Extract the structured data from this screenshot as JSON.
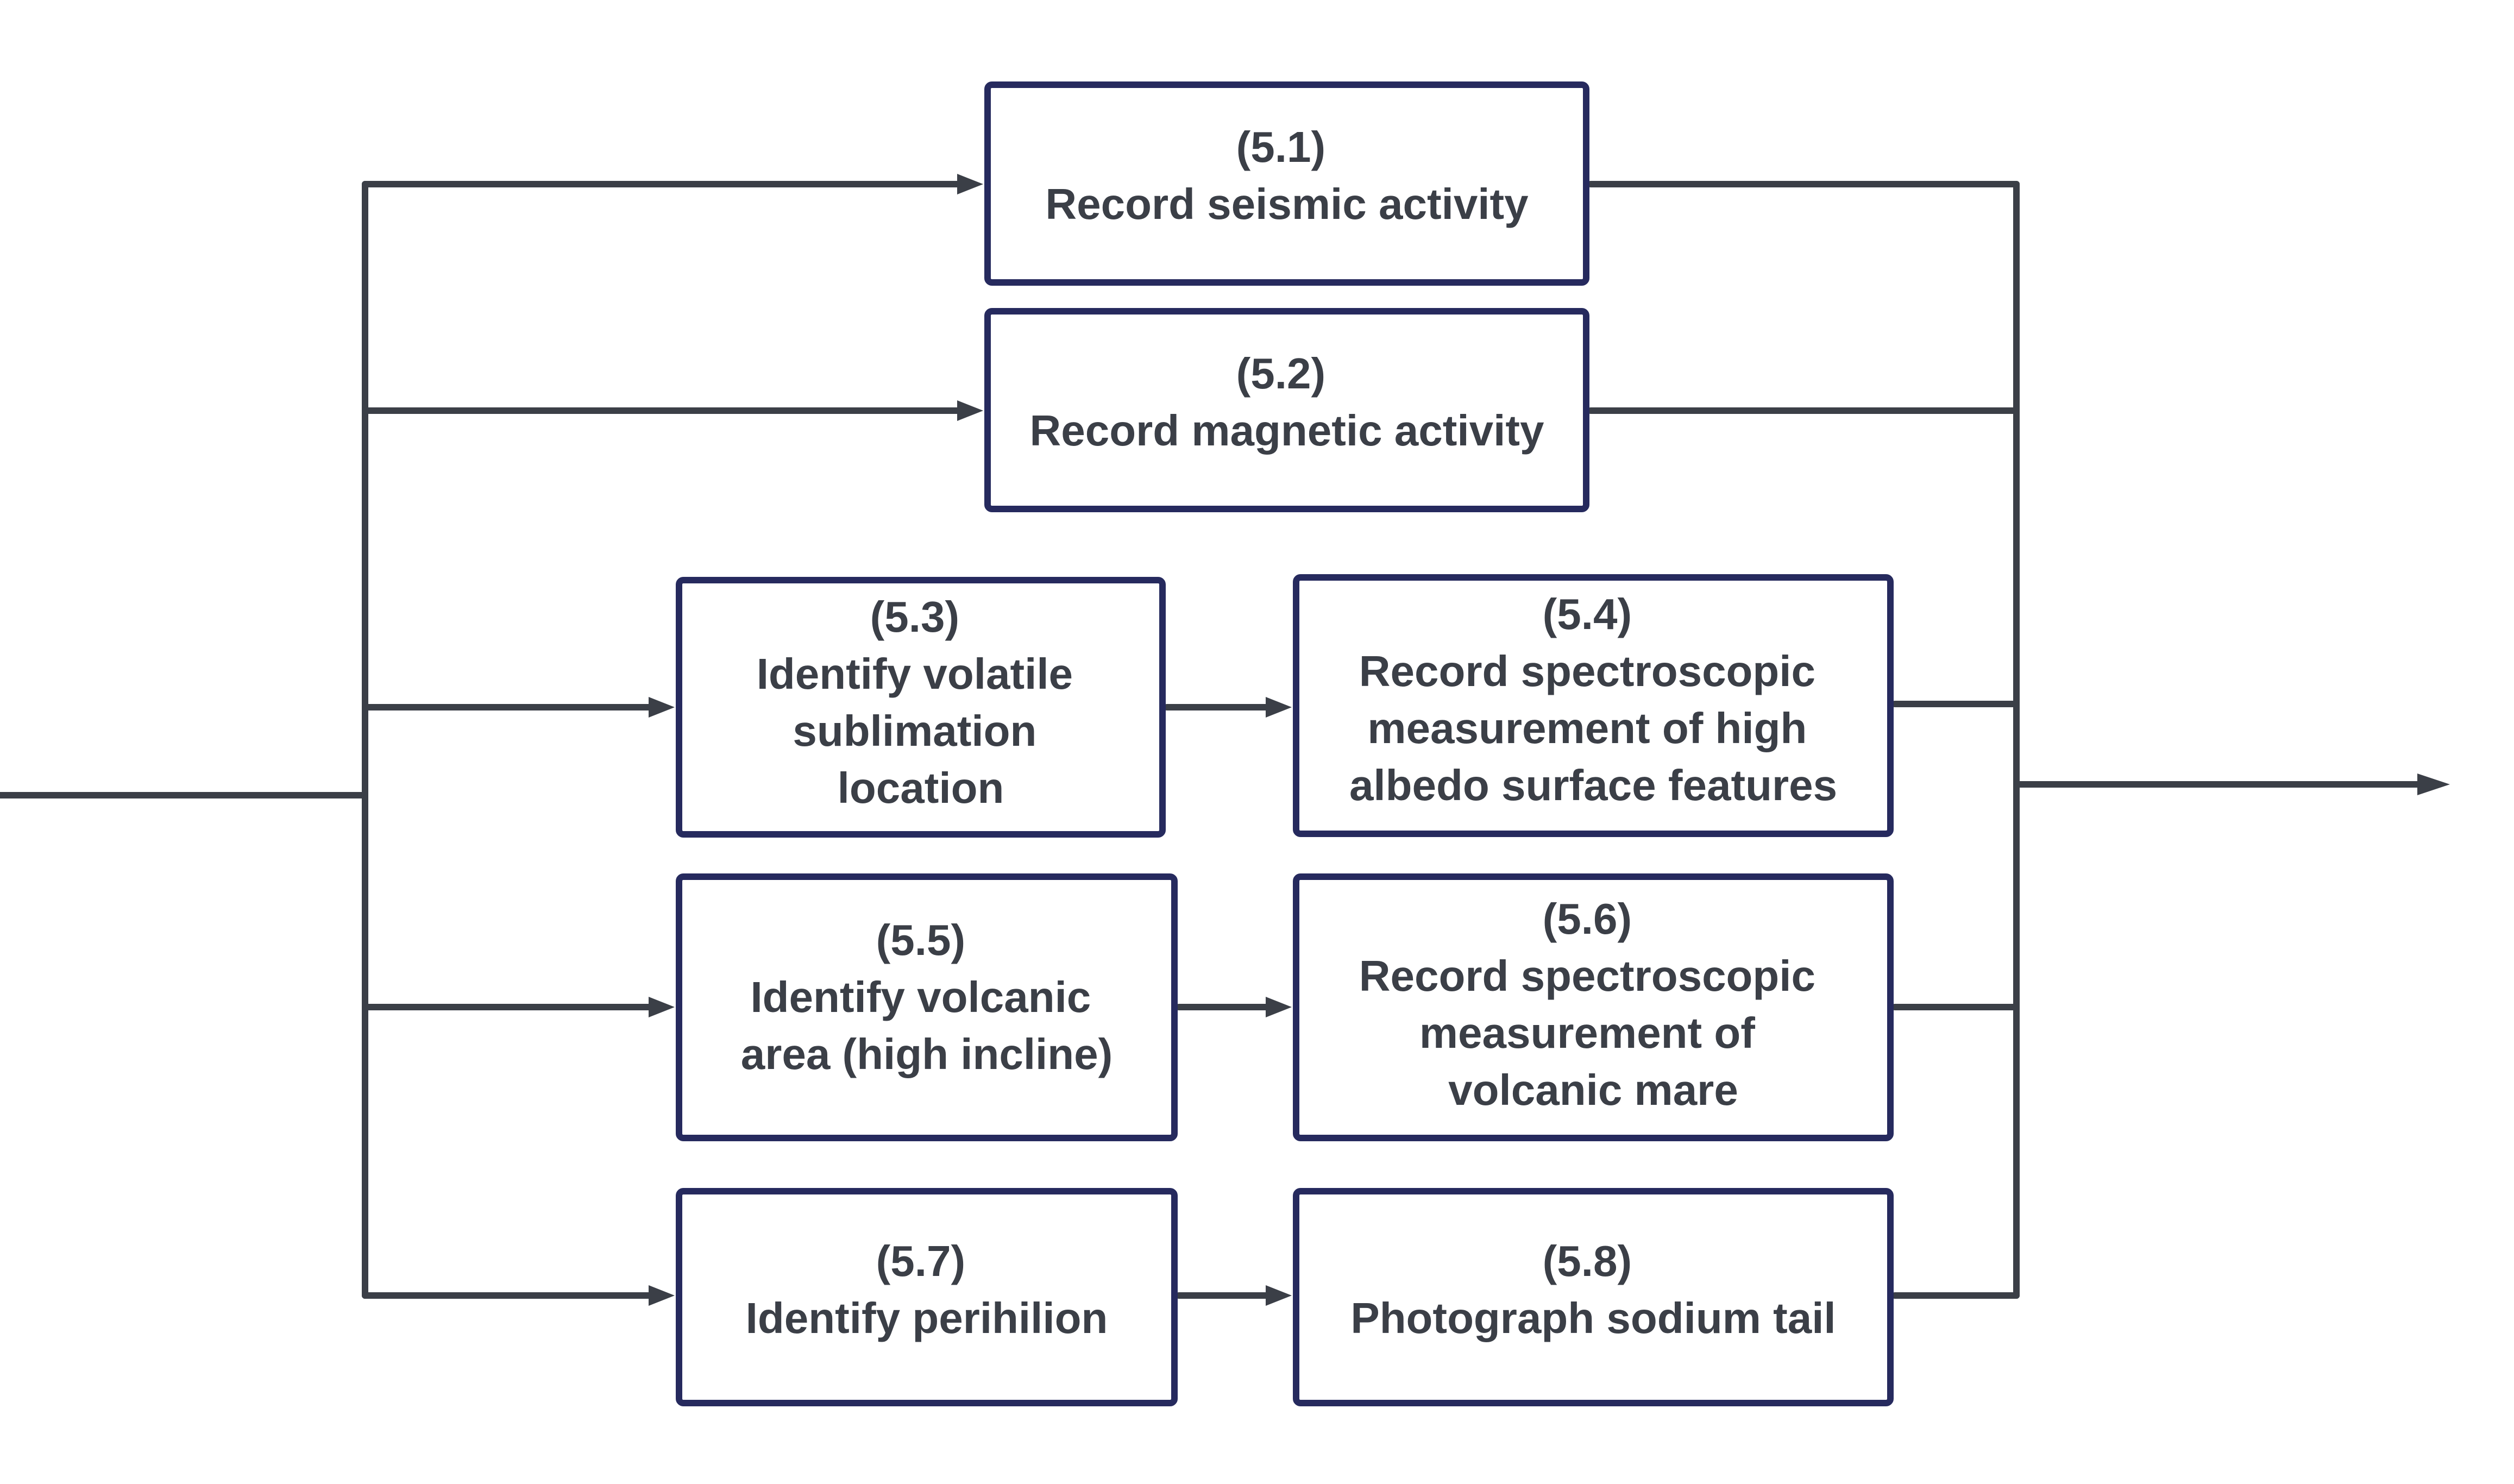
{
  "diagram": {
    "colors": {
      "box_stroke": "#262a5e",
      "connector": "#3b3f47",
      "text": "#3b3f47",
      "background": "#ffffff"
    },
    "nodes": [
      {
        "id": "5.1",
        "lines": [
          "(5.1)",
          "Record seismic activity"
        ]
      },
      {
        "id": "5.2",
        "lines": [
          "(5.2)",
          "Record magnetic activity"
        ]
      },
      {
        "id": "5.3",
        "lines": [
          "(5.3)",
          "Identify volatile",
          "sublimation",
          "location"
        ]
      },
      {
        "id": "5.4",
        "lines": [
          "(5.4)",
          "Record spectroscopic",
          "measurement of high",
          "albedo surface features"
        ]
      },
      {
        "id": "5.5",
        "lines": [
          "(5.5)",
          "Identify volcanic",
          "area (high incline)"
        ]
      },
      {
        "id": "5.6",
        "lines": [
          "(5.6)",
          "Record spectroscopic",
          "measurement of",
          "volcanic mare"
        ]
      },
      {
        "id": "5.7",
        "lines": [
          "(5.7)",
          "Identify perihilion"
        ]
      },
      {
        "id": "5.8",
        "lines": [
          "(5.8)",
          "Photograph sodium tail"
        ]
      }
    ],
    "edges": [
      {
        "from": "input",
        "to": "5.1"
      },
      {
        "from": "input",
        "to": "5.2"
      },
      {
        "from": "input",
        "to": "5.3"
      },
      {
        "from": "input",
        "to": "5.5"
      },
      {
        "from": "input",
        "to": "5.7"
      },
      {
        "from": "5.3",
        "to": "5.4"
      },
      {
        "from": "5.5",
        "to": "5.6"
      },
      {
        "from": "5.7",
        "to": "5.8"
      },
      {
        "from": "5.1",
        "to": "output"
      },
      {
        "from": "5.2",
        "to": "output"
      },
      {
        "from": "5.4",
        "to": "output"
      },
      {
        "from": "5.6",
        "to": "output"
      },
      {
        "from": "5.8",
        "to": "output"
      }
    ]
  }
}
